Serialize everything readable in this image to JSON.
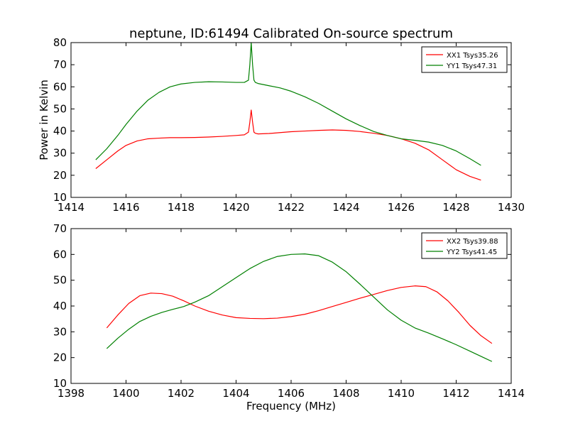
{
  "chart_data": {
    "type": "line",
    "title": "neptune, ID:61494 Calibrated On-source spectrum",
    "ylabel": "Power in Kelvin",
    "xlabel": "Frequency (MHz)",
    "subplots": [
      {
        "xlim": [
          1414,
          1430
        ],
        "ylim": [
          10,
          80
        ],
        "xticks": [
          1414,
          1416,
          1418,
          1420,
          1422,
          1424,
          1426,
          1428,
          1430
        ],
        "yticks": [
          10,
          20,
          30,
          40,
          50,
          60,
          70,
          80
        ],
        "legend_position": "top-right",
        "series": [
          {
            "name": "XX1 Tsys35.26",
            "color": "#ff0000",
            "x": [
              1414.9,
              1415.3,
              1415.7,
              1416.0,
              1416.4,
              1416.8,
              1417.2,
              1417.6,
              1418.0,
              1418.5,
              1419.0,
              1419.5,
              1420.0,
              1420.3,
              1420.45,
              1420.5,
              1420.55,
              1420.6,
              1420.65,
              1420.7,
              1420.8,
              1421.2,
              1421.6,
              1422.0,
              1422.5,
              1423.0,
              1423.5,
              1424.0,
              1424.5,
              1425.0,
              1425.5,
              1426.0,
              1426.5,
              1427.0,
              1427.5,
              1428.0,
              1428.5,
              1428.9
            ],
            "values": [
              23,
              27,
              31,
              33.5,
              35.5,
              36.5,
              36.8,
              37,
              37,
              37.1,
              37.3,
              37.6,
              38,
              38.3,
              39.5,
              44,
              49.5,
              44,
              39.5,
              39,
              38.7,
              38.9,
              39.3,
              39.7,
              40,
              40.3,
              40.5,
              40.3,
              39.8,
              39,
              38,
              36.5,
              34.5,
              31.5,
              27,
              22.5,
              19.5,
              17.8
            ]
          },
          {
            "name": "YY1 Tsys47.31",
            "color": "#008000",
            "x": [
              1414.9,
              1415.3,
              1415.7,
              1416.0,
              1416.4,
              1416.8,
              1417.2,
              1417.6,
              1418.0,
              1418.5,
              1419.0,
              1419.5,
              1420.0,
              1420.3,
              1420.45,
              1420.5,
              1420.55,
              1420.6,
              1420.65,
              1420.7,
              1420.8,
              1421.2,
              1421.6,
              1422.0,
              1422.5,
              1423.0,
              1423.5,
              1424.0,
              1424.5,
              1425.0,
              1425.5,
              1426.0,
              1426.5,
              1427.0,
              1427.5,
              1428.0,
              1428.5,
              1428.9
            ],
            "values": [
              27,
              32,
              38,
              43,
              49,
              54,
              57.5,
              60,
              61.3,
              62,
              62.3,
              62.2,
              62,
              62,
              63,
              70,
              80,
              70,
              63,
              62,
              61.5,
              60.5,
              59.5,
              58,
              55.5,
              52.5,
              49,
              45.5,
              42.5,
              39.8,
              38,
              36.5,
              35.8,
              35,
              33.5,
              31,
              27.5,
              24.5
            ]
          }
        ]
      },
      {
        "xlim": [
          1398,
          1414
        ],
        "ylim": [
          10,
          70
        ],
        "xticks": [
          1398,
          1400,
          1402,
          1404,
          1406,
          1408,
          1410,
          1412,
          1414
        ],
        "yticks": [
          10,
          20,
          30,
          40,
          50,
          60,
          70
        ],
        "legend_position": "top-right",
        "series": [
          {
            "name": "XX2 Tsys39.88",
            "color": "#ff0000",
            "x": [
              1399.3,
              1399.7,
              1400.1,
              1400.5,
              1400.9,
              1401.3,
              1401.7,
              1402.1,
              1402.5,
              1403.0,
              1403.5,
              1404.0,
              1404.5,
              1405.0,
              1405.5,
              1406.0,
              1406.5,
              1407.0,
              1407.5,
              1408.0,
              1408.5,
              1409.0,
              1409.5,
              1410.0,
              1410.5,
              1410.9,
              1411.3,
              1411.7,
              1412.1,
              1412.5,
              1412.9,
              1413.3
            ],
            "values": [
              31.5,
              36.5,
              41,
              44,
              45,
              44.8,
              43.8,
              42,
              40,
              38,
              36.5,
              35.5,
              35.2,
              35.1,
              35.3,
              35.9,
              36.8,
              38.2,
              39.8,
              41.4,
              43,
              44.5,
              46,
              47.2,
              47.8,
              47.5,
              45.5,
              42,
              37.5,
              32.5,
              28.5,
              25.5
            ]
          },
          {
            "name": "YY2 Tsys41.45",
            "color": "#008000",
            "x": [
              1399.3,
              1399.7,
              1400.1,
              1400.5,
              1400.9,
              1401.3,
              1401.7,
              1402.1,
              1402.5,
              1403.0,
              1403.5,
              1404.0,
              1404.5,
              1405.0,
              1405.5,
              1406.0,
              1406.5,
              1407.0,
              1407.5,
              1408.0,
              1408.5,
              1409.0,
              1409.5,
              1410.0,
              1410.5,
              1411.0,
              1411.5,
              1412.0,
              1412.5,
              1413.0,
              1413.3
            ],
            "values": [
              23.5,
              27.5,
              31,
              34,
              36,
              37.5,
              38.7,
              39.8,
              41.5,
              44,
              47.5,
              51,
              54.5,
              57.3,
              59.2,
              60,
              60.2,
              59.5,
              57,
              53.3,
              48.5,
              43.5,
              38.5,
              34.5,
              31.5,
              29.5,
              27.3,
              25,
              22.5,
              20,
              18.5
            ]
          }
        ]
      }
    ]
  }
}
